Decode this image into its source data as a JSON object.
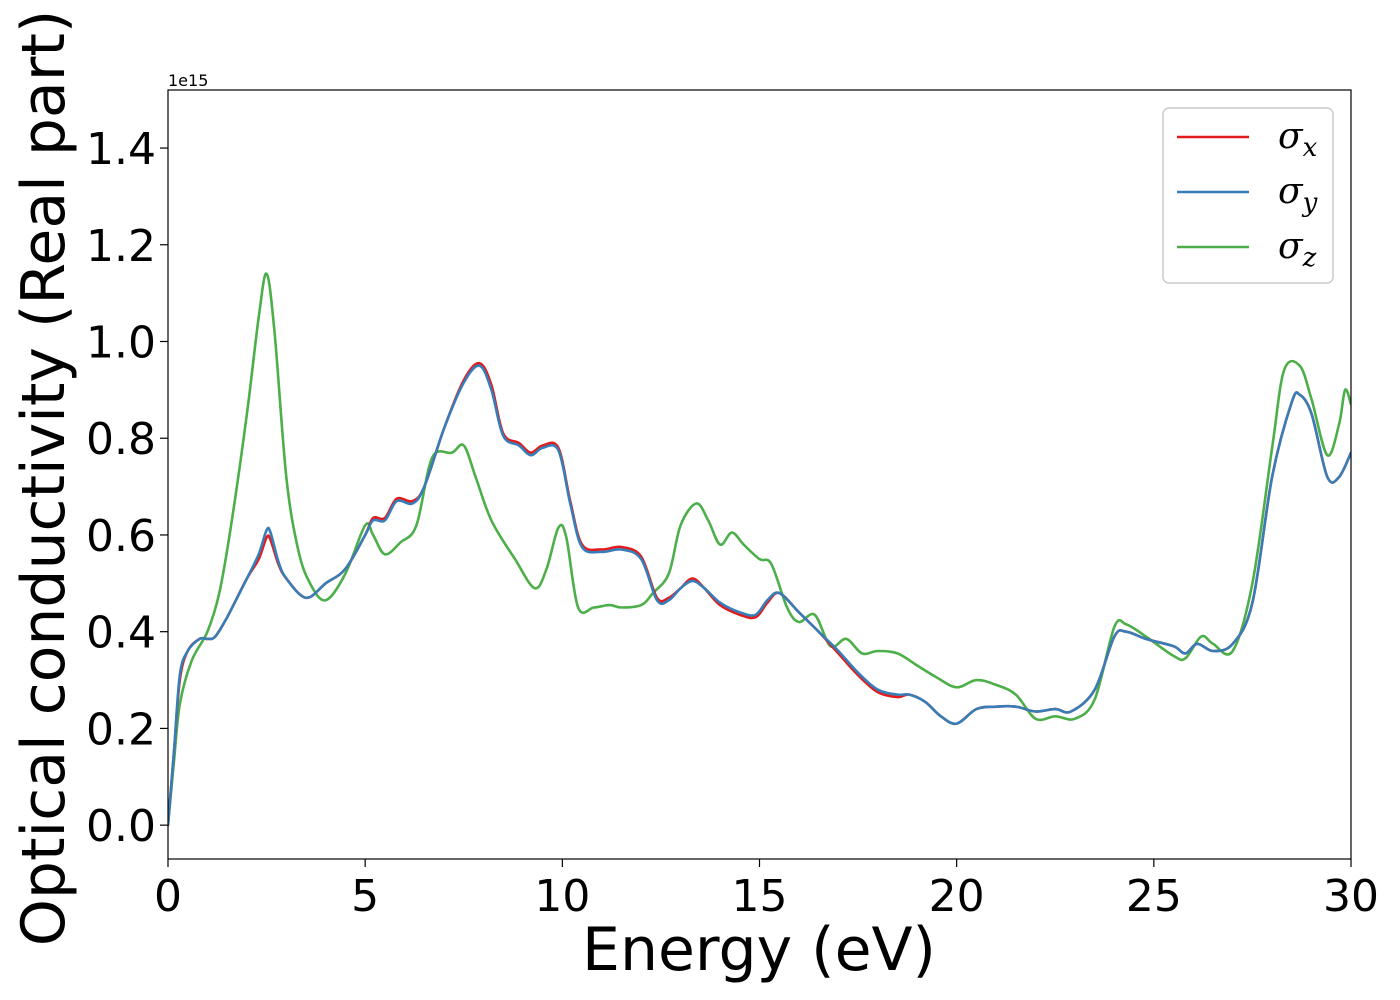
{
  "chart_data": {
    "type": "line",
    "title": "",
    "xlabel": "Energy (eV)",
    "ylabel": "Optical conductivity (Real part)",
    "y_offset_text": "1e15",
    "xlim": [
      0,
      30
    ],
    "ylim": [
      -0.07,
      1.52
    ],
    "xticks": [
      0,
      5,
      10,
      15,
      20,
      25,
      30
    ],
    "yticks": [
      0.0,
      0.2,
      0.4,
      0.6,
      0.8,
      1.0,
      1.2,
      1.4
    ],
    "xtick_labels": [
      "0",
      "5",
      "10",
      "15",
      "20",
      "25",
      "30"
    ],
    "ytick_labels": [
      "0.0",
      "0.2",
      "0.4",
      "0.6",
      "0.8",
      "1.0",
      "1.2",
      "1.4"
    ],
    "grid": false,
    "legend_position": "top-right",
    "series": [
      {
        "name": "σx",
        "label_base": "σ",
        "label_sub": "x",
        "color": "#e41a1c",
        "points": [
          [
            0,
            0.0
          ],
          [
            0.15,
            0.15
          ],
          [
            0.3,
            0.3
          ],
          [
            0.5,
            0.36
          ],
          [
            0.8,
            0.385
          ],
          [
            1.0,
            0.385
          ],
          [
            1.2,
            0.39
          ],
          [
            1.5,
            0.43
          ],
          [
            2.0,
            0.51
          ],
          [
            2.3,
            0.55
          ],
          [
            2.5,
            0.595
          ],
          [
            2.6,
            0.59
          ],
          [
            2.8,
            0.54
          ],
          [
            3.0,
            0.51
          ],
          [
            3.5,
            0.47
          ],
          [
            4.0,
            0.5
          ],
          [
            4.5,
            0.53
          ],
          [
            5.0,
            0.6
          ],
          [
            5.2,
            0.635
          ],
          [
            5.5,
            0.635
          ],
          [
            5.8,
            0.675
          ],
          [
            6.2,
            0.67
          ],
          [
            6.5,
            0.7
          ],
          [
            7.0,
            0.82
          ],
          [
            7.5,
            0.92
          ],
          [
            7.9,
            0.955
          ],
          [
            8.2,
            0.91
          ],
          [
            8.5,
            0.81
          ],
          [
            8.9,
            0.79
          ],
          [
            9.2,
            0.77
          ],
          [
            9.5,
            0.785
          ],
          [
            9.9,
            0.78
          ],
          [
            10.2,
            0.67
          ],
          [
            10.5,
            0.58
          ],
          [
            11.0,
            0.57
          ],
          [
            11.5,
            0.575
          ],
          [
            12.0,
            0.555
          ],
          [
            12.4,
            0.47
          ],
          [
            12.7,
            0.47
          ],
          [
            13.0,
            0.49
          ],
          [
            13.3,
            0.51
          ],
          [
            13.6,
            0.49
          ],
          [
            14.0,
            0.455
          ],
          [
            14.5,
            0.435
          ],
          [
            14.9,
            0.43
          ],
          [
            15.2,
            0.46
          ],
          [
            15.5,
            0.48
          ],
          [
            16.0,
            0.44
          ],
          [
            16.5,
            0.4
          ],
          [
            17.0,
            0.355
          ],
          [
            17.5,
            0.31
          ],
          [
            18.0,
            0.275
          ],
          [
            18.5,
            0.265
          ],
          [
            18.8,
            0.27
          ],
          [
            19.2,
            0.255
          ],
          [
            19.6,
            0.225
          ],
          [
            20.0,
            0.21
          ],
          [
            20.5,
            0.24
          ],
          [
            21.0,
            0.245
          ],
          [
            21.5,
            0.245
          ],
          [
            22.0,
            0.235
          ],
          [
            22.5,
            0.24
          ],
          [
            22.9,
            0.235
          ],
          [
            23.5,
            0.28
          ],
          [
            24.0,
            0.39
          ],
          [
            24.3,
            0.4
          ],
          [
            24.8,
            0.385
          ],
          [
            25.5,
            0.37
          ],
          [
            25.8,
            0.355
          ],
          [
            26.1,
            0.375
          ],
          [
            26.5,
            0.36
          ],
          [
            27.0,
            0.375
          ],
          [
            27.5,
            0.46
          ],
          [
            28.0,
            0.72
          ],
          [
            28.5,
            0.875
          ],
          [
            28.7,
            0.89
          ],
          [
            29.0,
            0.85
          ],
          [
            29.4,
            0.72
          ],
          [
            29.7,
            0.72
          ],
          [
            30.0,
            0.77
          ]
        ]
      },
      {
        "name": "σy",
        "label_base": "σ",
        "label_sub": "y",
        "color": "#377eb8",
        "points": [
          [
            0,
            0.0
          ],
          [
            0.15,
            0.15
          ],
          [
            0.3,
            0.31
          ],
          [
            0.5,
            0.36
          ],
          [
            0.8,
            0.385
          ],
          [
            1.0,
            0.385
          ],
          [
            1.2,
            0.39
          ],
          [
            1.5,
            0.43
          ],
          [
            2.0,
            0.51
          ],
          [
            2.3,
            0.56
          ],
          [
            2.5,
            0.61
          ],
          [
            2.6,
            0.605
          ],
          [
            2.8,
            0.545
          ],
          [
            3.0,
            0.51
          ],
          [
            3.5,
            0.47
          ],
          [
            4.0,
            0.5
          ],
          [
            4.5,
            0.53
          ],
          [
            5.0,
            0.6
          ],
          [
            5.2,
            0.63
          ],
          [
            5.5,
            0.63
          ],
          [
            5.8,
            0.67
          ],
          [
            6.2,
            0.665
          ],
          [
            6.5,
            0.7
          ],
          [
            7.0,
            0.82
          ],
          [
            7.5,
            0.915
          ],
          [
            7.9,
            0.95
          ],
          [
            8.2,
            0.9
          ],
          [
            8.5,
            0.805
          ],
          [
            8.9,
            0.785
          ],
          [
            9.2,
            0.765
          ],
          [
            9.5,
            0.78
          ],
          [
            9.9,
            0.775
          ],
          [
            10.2,
            0.665
          ],
          [
            10.5,
            0.575
          ],
          [
            11.0,
            0.565
          ],
          [
            11.5,
            0.57
          ],
          [
            12.0,
            0.55
          ],
          [
            12.4,
            0.465
          ],
          [
            12.7,
            0.465
          ],
          [
            13.0,
            0.49
          ],
          [
            13.3,
            0.505
          ],
          [
            13.6,
            0.49
          ],
          [
            14.0,
            0.46
          ],
          [
            14.5,
            0.44
          ],
          [
            14.9,
            0.435
          ],
          [
            15.2,
            0.465
          ],
          [
            15.5,
            0.48
          ],
          [
            16.0,
            0.44
          ],
          [
            16.5,
            0.4
          ],
          [
            17.0,
            0.36
          ],
          [
            17.5,
            0.315
          ],
          [
            18.0,
            0.28
          ],
          [
            18.5,
            0.27
          ],
          [
            18.8,
            0.27
          ],
          [
            19.2,
            0.255
          ],
          [
            19.6,
            0.225
          ],
          [
            20.0,
            0.21
          ],
          [
            20.5,
            0.24
          ],
          [
            21.0,
            0.245
          ],
          [
            21.5,
            0.245
          ],
          [
            22.0,
            0.235
          ],
          [
            22.5,
            0.24
          ],
          [
            22.9,
            0.235
          ],
          [
            23.5,
            0.28
          ],
          [
            24.0,
            0.39
          ],
          [
            24.3,
            0.4
          ],
          [
            24.8,
            0.385
          ],
          [
            25.5,
            0.37
          ],
          [
            25.8,
            0.355
          ],
          [
            26.1,
            0.375
          ],
          [
            26.5,
            0.36
          ],
          [
            27.0,
            0.375
          ],
          [
            27.5,
            0.46
          ],
          [
            28.0,
            0.72
          ],
          [
            28.5,
            0.875
          ],
          [
            28.7,
            0.89
          ],
          [
            29.0,
            0.85
          ],
          [
            29.4,
            0.72
          ],
          [
            29.7,
            0.72
          ],
          [
            30.0,
            0.77
          ]
        ]
      },
      {
        "name": "σz",
        "label_base": "σ",
        "label_sub": "z",
        "color": "#4daf4a",
        "points": [
          [
            0,
            0.0
          ],
          [
            0.15,
            0.13
          ],
          [
            0.3,
            0.25
          ],
          [
            0.6,
            0.34
          ],
          [
            1.0,
            0.4
          ],
          [
            1.3,
            0.48
          ],
          [
            1.6,
            0.62
          ],
          [
            2.0,
            0.85
          ],
          [
            2.3,
            1.05
          ],
          [
            2.5,
            1.14
          ],
          [
            2.7,
            1.02
          ],
          [
            3.0,
            0.72
          ],
          [
            3.3,
            0.57
          ],
          [
            3.6,
            0.5
          ],
          [
            4.0,
            0.465
          ],
          [
            4.5,
            0.52
          ],
          [
            5.0,
            0.62
          ],
          [
            5.2,
            0.6
          ],
          [
            5.5,
            0.56
          ],
          [
            5.9,
            0.585
          ],
          [
            6.3,
            0.62
          ],
          [
            6.7,
            0.76
          ],
          [
            7.2,
            0.77
          ],
          [
            7.5,
            0.785
          ],
          [
            7.8,
            0.72
          ],
          [
            8.2,
            0.63
          ],
          [
            8.8,
            0.55
          ],
          [
            9.3,
            0.49
          ],
          [
            9.6,
            0.53
          ],
          [
            9.9,
            0.615
          ],
          [
            10.1,
            0.595
          ],
          [
            10.4,
            0.45
          ],
          [
            10.8,
            0.45
          ],
          [
            11.2,
            0.455
          ],
          [
            11.5,
            0.45
          ],
          [
            12.0,
            0.455
          ],
          [
            12.3,
            0.48
          ],
          [
            12.7,
            0.52
          ],
          [
            13.0,
            0.62
          ],
          [
            13.4,
            0.665
          ],
          [
            13.7,
            0.63
          ],
          [
            14.0,
            0.58
          ],
          [
            14.3,
            0.605
          ],
          [
            14.6,
            0.58
          ],
          [
            15.0,
            0.55
          ],
          [
            15.3,
            0.54
          ],
          [
            15.7,
            0.45
          ],
          [
            16.0,
            0.42
          ],
          [
            16.4,
            0.435
          ],
          [
            16.8,
            0.37
          ],
          [
            17.2,
            0.385
          ],
          [
            17.6,
            0.355
          ],
          [
            18.0,
            0.36
          ],
          [
            18.5,
            0.355
          ],
          [
            19.0,
            0.33
          ],
          [
            19.5,
            0.305
          ],
          [
            20.0,
            0.285
          ],
          [
            20.5,
            0.3
          ],
          [
            21.0,
            0.29
          ],
          [
            21.5,
            0.27
          ],
          [
            22.0,
            0.22
          ],
          [
            22.5,
            0.225
          ],
          [
            23.0,
            0.22
          ],
          [
            23.5,
            0.26
          ],
          [
            24.0,
            0.41
          ],
          [
            24.3,
            0.415
          ],
          [
            24.8,
            0.39
          ],
          [
            25.5,
            0.35
          ],
          [
            25.8,
            0.345
          ],
          [
            26.2,
            0.39
          ],
          [
            26.5,
            0.375
          ],
          [
            27.0,
            0.36
          ],
          [
            27.5,
            0.5
          ],
          [
            28.0,
            0.78
          ],
          [
            28.3,
            0.94
          ],
          [
            28.7,
            0.95
          ],
          [
            29.0,
            0.88
          ],
          [
            29.4,
            0.765
          ],
          [
            29.7,
            0.83
          ],
          [
            29.85,
            0.9
          ],
          [
            30.0,
            0.87
          ]
        ]
      }
    ]
  }
}
